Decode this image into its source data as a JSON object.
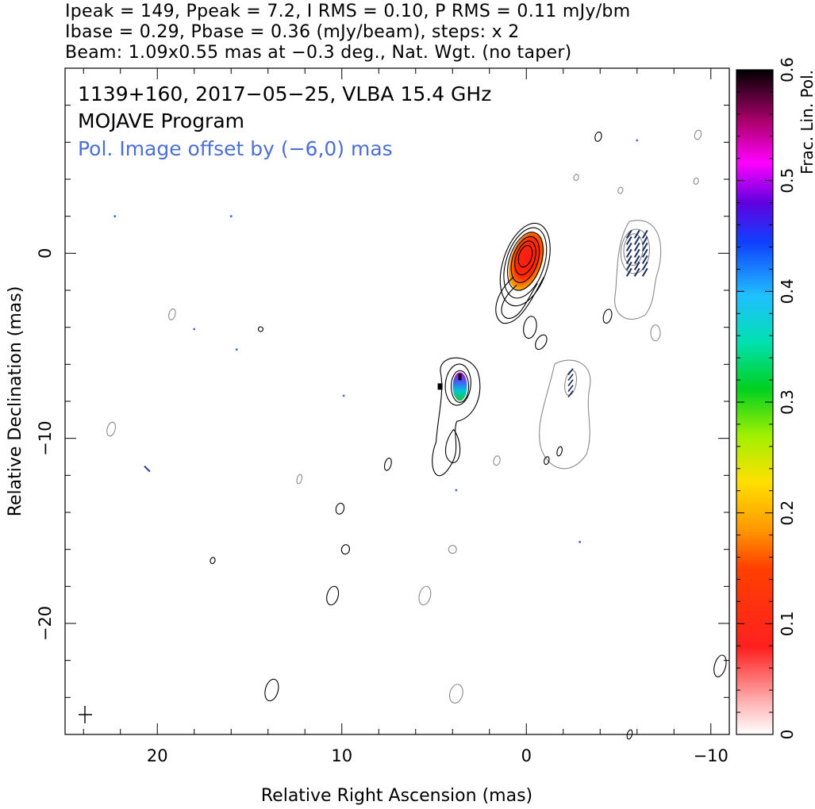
{
  "header": {
    "line1": "Ipeak = 149, Ppeak = 7.2, I RMS = 0.10, P RMS = 0.11 mJy/bm",
    "line2": "Ibase = 0.29, Pbase = 0.36 (mJy/beam), steps: x 2",
    "line3": "Beam: 1.09x0.55 mas at −0.3 deg., Nat. Wgt. (no taper)"
  },
  "panel": {
    "title": "1139+160, 2017−05−25, VLBA 15.4 GHz",
    "program": "MOJAVE Program",
    "offset_note": "Pol. Image offset by (−6,0) mas"
  },
  "colors": {
    "total_intensity": "#000000",
    "pol_contour": "#8a8a8a",
    "pol_noise": "#4466cc",
    "pol_note": "#4b6fd6"
  },
  "chart_data": {
    "type": "contour",
    "xlabel": "Relative Right Ascension (mas)",
    "ylabel": "Relative Declination (mas)",
    "xlim": [
      25,
      -11
    ],
    "ylim": [
      -26,
      10
    ],
    "x_ticks": [
      20,
      10,
      0,
      -10
    ],
    "x_tick_labels": [
      "20",
      "10",
      "0",
      "−10"
    ],
    "y_ticks": [
      0,
      -10,
      -20
    ],
    "y_tick_labels": [
      "0",
      "−10",
      "−20"
    ],
    "colorbar": {
      "label": "Frac. Lin. Pol.",
      "range": [
        0,
        0.6
      ],
      "ticks": [
        "0",
        "0.1",
        "0.2",
        "0.3",
        "0.4",
        "0.5",
        "0.6"
      ]
    },
    "total_intensity_components": [
      {
        "name": "core",
        "x": 0.0,
        "y": 0.0,
        "peak_mJy": 149
      },
      {
        "name": "knot",
        "x": 3.6,
        "y": -7.2
      }
    ],
    "polarization_components": [
      {
        "name": "core_pol",
        "x": -6.0,
        "y": 0.0,
        "peak_mJy": 7.2
      },
      {
        "name": "knot_pol",
        "x": -2.4,
        "y": -7.0
      }
    ]
  }
}
